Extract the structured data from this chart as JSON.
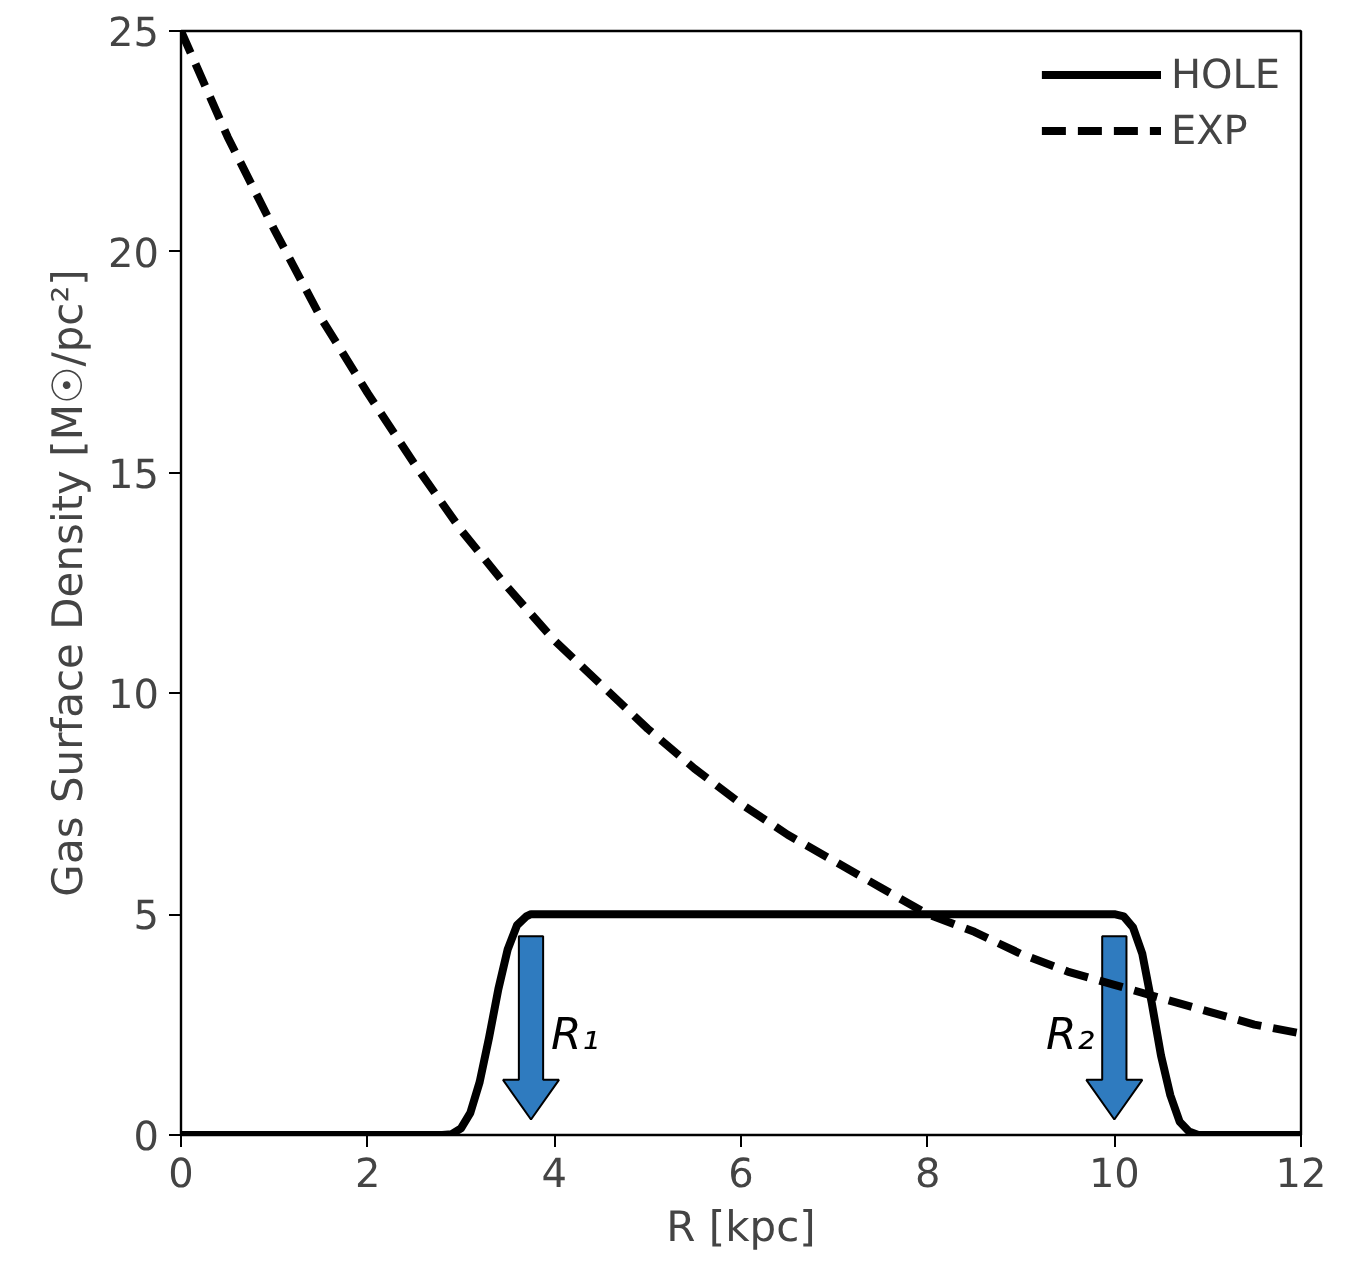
{
  "chart_data": {
    "type": "line",
    "xlabel": "R [kpc]",
    "ylabel": "Gas Surface Density [M☉/pc²]",
    "series": [
      {
        "name": "HOLE",
        "color": "#000000",
        "line_style": "solid",
        "x": [
          0,
          2.8,
          2.9,
          3.0,
          3.1,
          3.2,
          3.3,
          3.4,
          3.5,
          3.6,
          3.7,
          3.75,
          3.8,
          10.0,
          10.1,
          10.2,
          10.3,
          10.4,
          10.5,
          10.6,
          10.7,
          10.8,
          10.9,
          12
        ],
        "values": [
          0,
          0,
          0.02,
          0.15,
          0.5,
          1.2,
          2.2,
          3.3,
          4.2,
          4.75,
          4.95,
          5,
          5,
          5,
          4.95,
          4.7,
          4.1,
          3.0,
          1.8,
          0.9,
          0.3,
          0.08,
          0,
          0
        ]
      },
      {
        "name": "EXP",
        "color": "#000000",
        "line_style": "dashed",
        "x": [
          0,
          0.5,
          1,
          1.5,
          2,
          2.5,
          3,
          3.5,
          4,
          4.5,
          5,
          5.5,
          6,
          6.5,
          7,
          7.5,
          8,
          8.5,
          9,
          9.5,
          10,
          10.5,
          11,
          11.5,
          12
        ],
        "values": [
          25,
          22.6,
          20.5,
          18.5,
          16.8,
          15.2,
          13.7,
          12.4,
          11.2,
          10.2,
          9.2,
          8.3,
          7.5,
          6.8,
          6.2,
          5.6,
          5.0,
          4.6,
          4.1,
          3.7,
          3.4,
          3.1,
          2.8,
          2.5,
          2.3
        ]
      }
    ],
    "xlim": [
      0,
      12
    ],
    "ylim": [
      0,
      25
    ],
    "xticks": [
      0,
      2,
      4,
      6,
      8,
      10,
      12
    ],
    "yticks": [
      0,
      5,
      10,
      15,
      20,
      25
    ],
    "grid": false,
    "legend": "top right",
    "marker": "none",
    "annotations": [
      {
        "text": "R₁",
        "x": 3.75,
        "y": 5
      },
      {
        "text": "R₂",
        "x": 10,
        "y": 5
      }
    ]
  }
}
